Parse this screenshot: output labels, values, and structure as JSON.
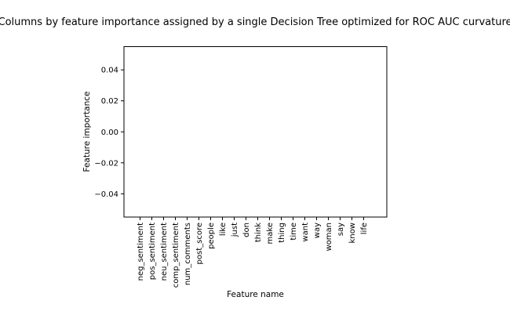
{
  "chart_data": {
    "type": "bar",
    "title": "Columns by feature importance assigned by a single Decision Tree optimized for ROC AUC curvature",
    "xlabel": "Feature name",
    "ylabel": "Feature importance",
    "categories": [
      "neg_sentiment",
      "pos_sentiment",
      "neu_sentiment",
      "comp_sentiment",
      "num_comments",
      "post_score",
      "people",
      "like",
      "just",
      "don",
      "think",
      "make",
      "thing",
      "time",
      "want",
      "way",
      "woman",
      "say",
      "know",
      "life"
    ],
    "values": [
      0,
      0,
      0,
      0,
      0,
      0,
      0,
      0,
      0,
      0,
      0,
      0,
      0,
      0,
      0,
      0,
      0,
      0,
      0,
      0
    ],
    "ylim": [
      -0.055,
      0.055
    ],
    "yticks": [
      -0.04,
      -0.02,
      0.0,
      0.02,
      0.04
    ],
    "ytick_labels": [
      "−0.04",
      "−0.02",
      "0.00",
      "0.02",
      "0.04"
    ],
    "grid": false
  }
}
